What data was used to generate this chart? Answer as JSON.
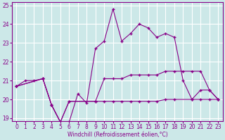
{
  "xlabel": "Windchill (Refroidissement éolien,°C)",
  "bg_color": "#cce8e8",
  "grid_color": "#ffffff",
  "line_color": "#880088",
  "xlim_min": -0.5,
  "xlim_max": 23.5,
  "ylim_min": 18.85,
  "ylim_max": 25.15,
  "yticks": [
    19,
    20,
    21,
    22,
    23,
    24,
    25
  ],
  "xticks": [
    0,
    1,
    2,
    3,
    4,
    5,
    6,
    7,
    8,
    9,
    10,
    11,
    12,
    13,
    14,
    15,
    16,
    17,
    18,
    19,
    20,
    21,
    22,
    23
  ],
  "line1_x": [
    0,
    1,
    2,
    3,
    4,
    5,
    6,
    7,
    8,
    9,
    10,
    11,
    12,
    13,
    14,
    15,
    16,
    17,
    18,
    19,
    20,
    21,
    22,
    23
  ],
  "line1_y": [
    20.7,
    21.0,
    21.0,
    21.1,
    19.7,
    18.8,
    18.8,
    20.3,
    19.8,
    22.7,
    23.1,
    24.8,
    23.1,
    23.5,
    24.0,
    23.8,
    23.3,
    23.5,
    23.3,
    21.0,
    20.0,
    20.5,
    20.5,
    20.0
  ],
  "line2_x": [
    0,
    3,
    4,
    5,
    6,
    9,
    10,
    11,
    12,
    13,
    14,
    15,
    16,
    17,
    18,
    19,
    20,
    21,
    22,
    23
  ],
  "line2_y": [
    20.7,
    21.1,
    19.7,
    18.8,
    19.9,
    19.9,
    21.1,
    21.1,
    21.1,
    21.3,
    21.3,
    21.3,
    21.3,
    21.5,
    21.5,
    21.5,
    21.5,
    21.5,
    20.5,
    20.0
  ],
  "line3_x": [
    0,
    3,
    4,
    5,
    6,
    9,
    10,
    11,
    12,
    13,
    14,
    15,
    16,
    17,
    18,
    20,
    21,
    22,
    23
  ],
  "line3_y": [
    20.7,
    21.1,
    19.7,
    18.8,
    19.9,
    19.9,
    19.9,
    19.9,
    19.9,
    19.9,
    19.9,
    19.9,
    19.9,
    20.0,
    20.0,
    20.0,
    20.0,
    20.0,
    20.0
  ]
}
